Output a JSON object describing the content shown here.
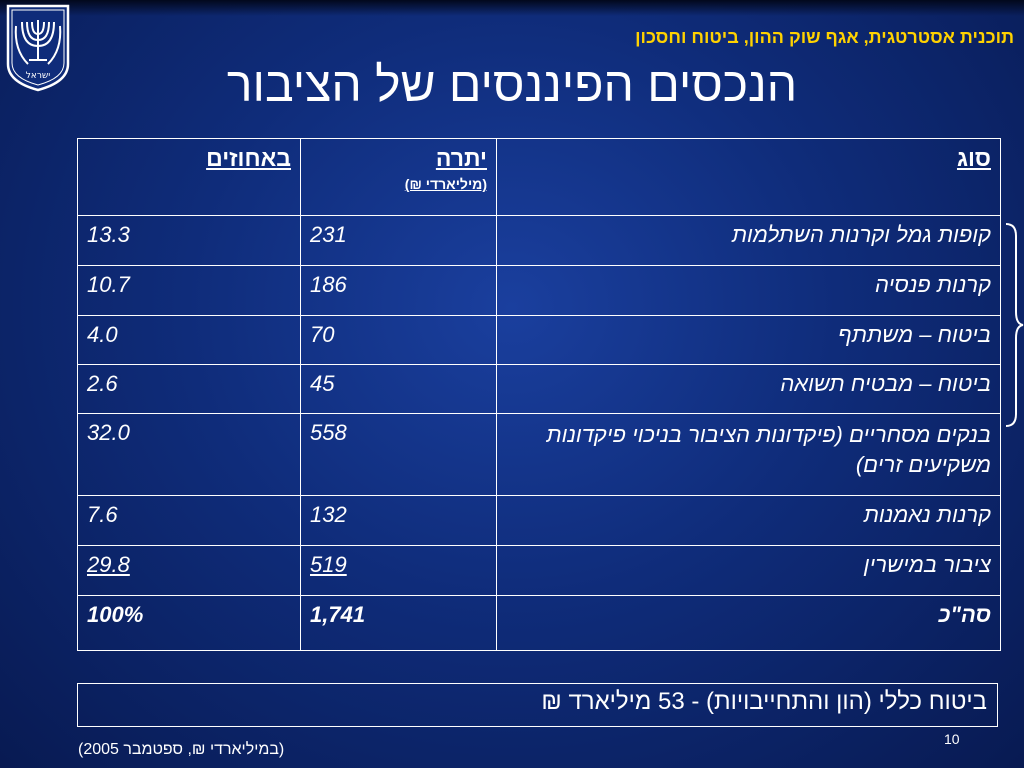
{
  "header": {
    "subtitle": "תוכנית אסטרטגית, אגף שוק ההון, ביטוח וחסכון",
    "title": "הנכסים הפיננסים של הציבור"
  },
  "emblem": {
    "icon": "menorah-emblem-icon",
    "caption": "ישראל"
  },
  "table": {
    "headers": {
      "type": "סוג",
      "balance": "יתרה",
      "balance_unit": "(מיליארדי ₪)",
      "percent": "באחוזים"
    },
    "rows": [
      {
        "type": "קופות גמל וקרנות השתלמות",
        "balance": "231",
        "percent": "13.3"
      },
      {
        "type": "קרנות פנסיה",
        "balance": "186",
        "percent": "10.7"
      },
      {
        "type": "ביטוח – משתתף",
        "balance": "70",
        "percent": "4.0"
      },
      {
        "type": "ביטוח – מבטיח תשואה",
        "balance": "45",
        "percent": "2.6"
      },
      {
        "type": "בנקים מסחריים (פיקדונות הציבור בניכוי פיקדונות משקיעים זרים)",
        "balance": "558",
        "percent": "32.0"
      },
      {
        "type": "קרנות נאמנות",
        "balance": "132",
        "percent": "7.6"
      },
      {
        "type": "ציבור במישרין",
        "balance": "519",
        "percent": "29.8"
      }
    ],
    "total": {
      "type": "סה\"כ",
      "balance": "1,741",
      "percent": "100%"
    }
  },
  "brace_icon": "right-curly-brace-icon",
  "insurance_note": "ביטוח כללי (הון  והתחייבויות) - 53 מיליארד ₪",
  "source_note": "(במיליארדי ₪, ספטמבר 2005)",
  "page_number": "10",
  "colors": {
    "background": "#0f2c7a",
    "subtitle": "#ffd200",
    "text": "#ffffff"
  }
}
